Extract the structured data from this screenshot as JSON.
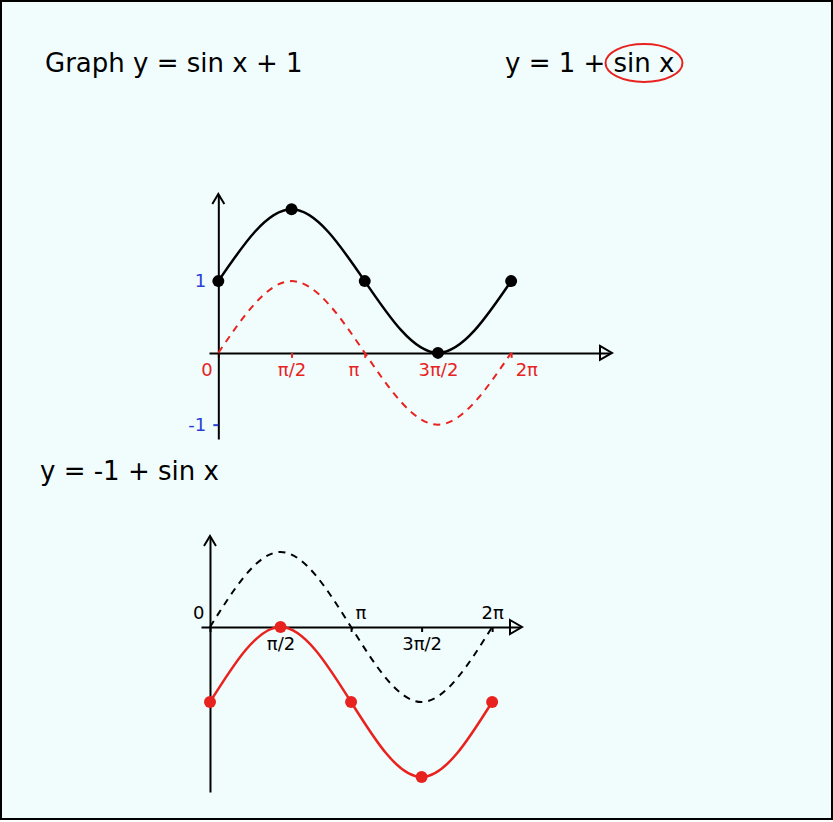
{
  "chart_data": [
    {
      "type": "line",
      "title": "Graph y = sin x + 1",
      "subtitle": "y = 1 + sin x",
      "x": [
        0,
        1.57,
        3.14,
        4.71,
        6.28
      ],
      "series": [
        {
          "color": "#000000",
          "values": [
            1,
            2,
            1,
            0,
            1
          ],
          "marker": "circle",
          "line_style": "solid"
        },
        {
          "color": "#e8231f",
          "values": [
            0,
            1,
            0,
            -1,
            0
          ],
          "line_style": "dashed"
        }
      ],
      "xlim": [
        -0.2,
        8.4
      ],
      "ylim": [
        -1.2,
        2.2
      ],
      "xticks": [
        0,
        {
          "value": 1.57,
          "label": "π/2"
        },
        {
          "value": 3.14,
          "label": "π"
        },
        {
          "value": 4.71,
          "label": "3π/2"
        },
        {
          "value": 6.28,
          "label": "2π"
        }
      ],
      "yticks": [
        -1,
        1
      ]
    },
    {
      "type": "line",
      "title": "y = -1 + sin x",
      "x": [
        0,
        1.57,
        3.14,
        4.71,
        6.28
      ],
      "series": [
        {
          "color": "#e8231f",
          "values": [
            -1,
            0,
            -1,
            -2,
            -1
          ],
          "marker": "circle",
          "line_style": "solid"
        },
        {
          "color": "#000000",
          "values": [
            0,
            1,
            0,
            -1,
            0
          ],
          "line_style": "dashed"
        }
      ],
      "xlim": [
        -0.2,
        6.9
      ],
      "ylim": [
        -2.2,
        1.2
      ],
      "xticks": [
        0,
        {
          "value": 1.57,
          "label": "π/2"
        },
        {
          "value": 3.14,
          "label": "π"
        },
        {
          "value": 4.71,
          "label": "3π/2"
        },
        {
          "value": 6.28,
          "label": "2π"
        }
      ],
      "tick_labels": "x"
    }
  ]
}
